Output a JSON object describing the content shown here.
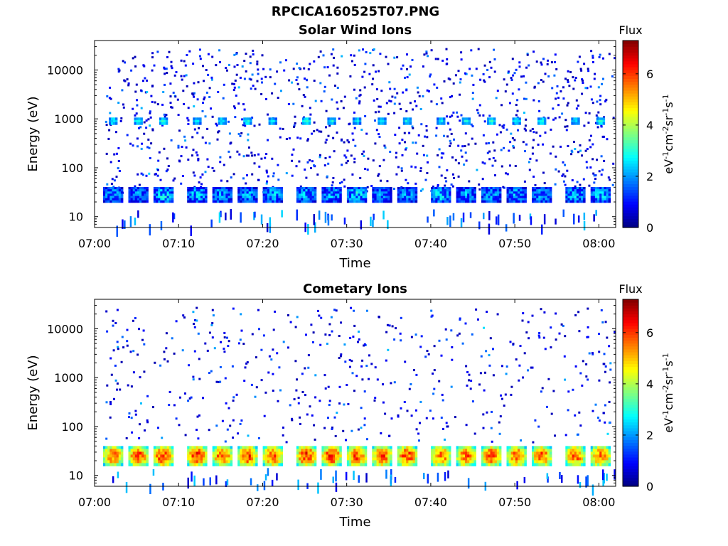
{
  "figure_title": "RPCICA160525T07.PNG",
  "chart_data": [
    {
      "type": "heatmap",
      "title": "Solar Wind Ions",
      "xlabel": "Time",
      "ylabel": "Energy (eV)",
      "y_scale": "log",
      "ylim": [
        6,
        40000
      ],
      "x_range": [
        "07:00",
        "08:02"
      ],
      "x_ticks": [
        "07:00",
        "07:10",
        "07:20",
        "07:30",
        "07:40",
        "07:50",
        "08:00"
      ],
      "y_ticks": [
        "10",
        "100",
        "1000",
        "10000"
      ],
      "colorbar": {
        "label": "Flux",
        "unit_label": "eV-1cm-2sr-1s-1",
        "range": [
          0,
          7.3
        ],
        "ticks": [
          "0",
          "2",
          "4",
          "6"
        ],
        "colormap": "jet"
      },
      "bursts": [
        {
          "time": "07:02",
          "energy": 900,
          "flux": 2.8
        },
        {
          "time": "07:05",
          "energy": 900,
          "flux": 2.8
        },
        {
          "time": "07:08",
          "energy": 900,
          "flux": 2.9
        },
        {
          "time": "07:12",
          "energy": 900,
          "flux": 2.6
        },
        {
          "time": "07:15",
          "energy": 900,
          "flux": 2.7
        },
        {
          "time": "07:18",
          "energy": 900,
          "flux": 2.9
        },
        {
          "time": "07:21",
          "energy": 900,
          "flux": 2.6
        },
        {
          "time": "07:25",
          "energy": 900,
          "flux": 2.9
        },
        {
          "time": "07:28",
          "energy": 900,
          "flux": 2.8
        },
        {
          "time": "07:31",
          "energy": 900,
          "flux": 2.6
        },
        {
          "time": "07:34",
          "energy": 900,
          "flux": 2.8
        },
        {
          "time": "07:37",
          "energy": 900,
          "flux": 2.7
        },
        {
          "time": "07:41",
          "energy": 900,
          "flux": 2.6
        },
        {
          "time": "07:44",
          "energy": 900,
          "flux": 2.8
        },
        {
          "time": "07:47",
          "energy": 900,
          "flux": 2.9
        },
        {
          "time": "07:50",
          "energy": 900,
          "flux": 2.7
        },
        {
          "time": "07:53",
          "energy": 900,
          "flux": 2.8
        },
        {
          "time": "07:57",
          "energy": 900,
          "flux": 2.6
        },
        {
          "time": "08:00",
          "energy": 900,
          "flux": 2.9
        },
        {
          "time": "07:02",
          "energy": 28,
          "flux": 2.4
        },
        {
          "time": "07:05",
          "energy": 28,
          "flux": 2.2
        },
        {
          "time": "07:08",
          "energy": 28,
          "flux": 2.9
        },
        {
          "time": "07:12",
          "energy": 28,
          "flux": 2.7
        },
        {
          "time": "07:15",
          "energy": 28,
          "flux": 2.5
        },
        {
          "time": "07:18",
          "energy": 28,
          "flux": 2.4
        },
        {
          "time": "07:21",
          "energy": 28,
          "flux": 2.6
        },
        {
          "time": "07:25",
          "energy": 28,
          "flux": 2.5
        },
        {
          "time": "07:28",
          "energy": 28,
          "flux": 2.6
        },
        {
          "time": "07:31",
          "energy": 28,
          "flux": 2.9
        },
        {
          "time": "07:34",
          "energy": 28,
          "flux": 2.3
        },
        {
          "time": "07:37",
          "energy": 28,
          "flux": 2.3
        },
        {
          "time": "07:41",
          "energy": 28,
          "flux": 2.8
        },
        {
          "time": "07:44",
          "energy": 28,
          "flux": 2.4
        },
        {
          "time": "07:47",
          "energy": 28,
          "flux": 2.5
        },
        {
          "time": "07:50",
          "energy": 28,
          "flux": 2.5
        },
        {
          "time": "07:53",
          "energy": 28,
          "flux": 2.4
        },
        {
          "time": "07:57",
          "energy": 28,
          "flux": 2.6
        },
        {
          "time": "08:00",
          "energy": 28,
          "flux": 2.7
        }
      ],
      "background": "sparse low-flux counts (flux ~0.5-1.2) scattered from ~40 eV to ~30000 eV"
    },
    {
      "type": "heatmap",
      "title": "Cometary Ions",
      "xlabel": "Time",
      "ylabel": "Energy (eV)",
      "y_scale": "log",
      "ylim": [
        6,
        40000
      ],
      "x_range": [
        "07:00",
        "08:02"
      ],
      "x_ticks": [
        "07:00",
        "07:10",
        "07:20",
        "07:30",
        "07:40",
        "07:50",
        "08:00"
      ],
      "y_ticks": [
        "10",
        "100",
        "1000",
        "10000"
      ],
      "colorbar": {
        "label": "Flux",
        "unit_label": "eV-1cm-2sr-1s-1",
        "range": [
          0,
          7.3
        ],
        "ticks": [
          "0",
          "2",
          "4",
          "6"
        ],
        "colormap": "jet"
      },
      "bursts": [
        {
          "time": "07:02",
          "energy": 25,
          "flux": 5.6
        },
        {
          "time": "07:05",
          "energy": 25,
          "flux": 5.8
        },
        {
          "time": "07:08",
          "energy": 25,
          "flux": 6.0
        },
        {
          "time": "07:12",
          "energy": 25,
          "flux": 6.0
        },
        {
          "time": "07:15",
          "energy": 25,
          "flux": 5.7
        },
        {
          "time": "07:18",
          "energy": 25,
          "flux": 5.9
        },
        {
          "time": "07:21",
          "energy": 25,
          "flux": 5.8
        },
        {
          "time": "07:25",
          "energy": 25,
          "flux": 6.1
        },
        {
          "time": "07:28",
          "energy": 25,
          "flux": 6.0
        },
        {
          "time": "07:31",
          "energy": 25,
          "flux": 5.9
        },
        {
          "time": "07:34",
          "energy": 25,
          "flux": 5.8
        },
        {
          "time": "07:37",
          "energy": 25,
          "flux": 5.9
        },
        {
          "time": "07:41",
          "energy": 25,
          "flux": 5.6
        },
        {
          "time": "07:44",
          "energy": 25,
          "flux": 5.6
        },
        {
          "time": "07:47",
          "energy": 25,
          "flux": 5.8
        },
        {
          "time": "07:50",
          "energy": 25,
          "flux": 5.7
        },
        {
          "time": "07:53",
          "energy": 25,
          "flux": 5.7
        },
        {
          "time": "07:57",
          "energy": 25,
          "flux": 5.6
        },
        {
          "time": "08:00",
          "energy": 25,
          "flux": 5.6
        }
      ],
      "background": "sparse low-flux counts (flux ~0.5-1.5) scattered from ~40 eV to ~30000 eV"
    }
  ]
}
